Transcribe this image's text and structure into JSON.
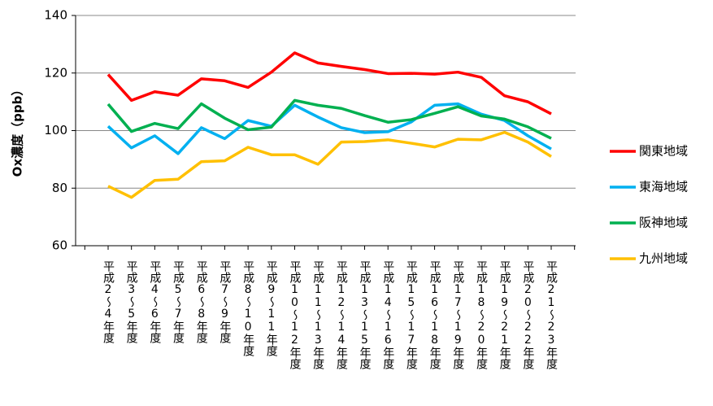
{
  "chart_data": {
    "type": "line",
    "y_label": "Ox濃度（ppb）",
    "categories": [
      "平成2～4年度",
      "平成3～5年度",
      "平成4～6年度",
      "平成5～7年度",
      "平成6～8年度",
      "平成7～9年度",
      "平成8～10年度",
      "平成9～11年度",
      "平成10～12年度",
      "平成11～13年度",
      "平成12～14年度",
      "平成13～15年度",
      "平成14～16年度",
      "平成15～17年度",
      "平成16～18年度",
      "平成17～19年度",
      "平成18～20年度",
      "平成19～21年度",
      "平成20～22年度",
      "平成21～23年度"
    ],
    "series": [
      {
        "name": "関東地域",
        "color": "#ff0000",
        "values": [
          119.5,
          110.5,
          113.5,
          112.3,
          118,
          117.3,
          115,
          120.3,
          127,
          123.5,
          122.3,
          121.2,
          119.8,
          119.9,
          119.6,
          120.3,
          118.5,
          112.1,
          110,
          105.8
        ]
      },
      {
        "name": "東海地域",
        "color": "#00b0f0",
        "values": [
          101.5,
          94,
          98.2,
          92,
          101,
          97.2,
          103.5,
          101.5,
          108.8,
          104.7,
          101,
          99.3,
          99.6,
          103,
          108.8,
          109.3,
          105.7,
          103.5,
          98.2,
          93.6
        ]
      },
      {
        "name": "阪神地域",
        "color": "#00b050",
        "values": [
          109.2,
          99.7,
          102.5,
          100.7,
          109.3,
          104.3,
          100.3,
          101.2,
          110.5,
          108.8,
          107.7,
          105.2,
          102.9,
          103.8,
          106,
          108.3,
          105.1,
          104,
          101.3,
          97.3
        ]
      },
      {
        "name": "九州地域",
        "color": "#ffc000",
        "values": [
          80.7,
          76.8,
          82.7,
          83.1,
          89.2,
          89.5,
          94.2,
          91.6,
          91.6,
          88.3,
          96,
          96.2,
          96.8,
          95.6,
          94.3,
          97,
          96.8,
          99.4,
          96,
          91
        ]
      }
    ],
    "ylim": [
      60,
      140
    ],
    "yticks": [
      60,
      80,
      100,
      120,
      140
    ],
    "grid": true,
    "legend": "right"
  }
}
